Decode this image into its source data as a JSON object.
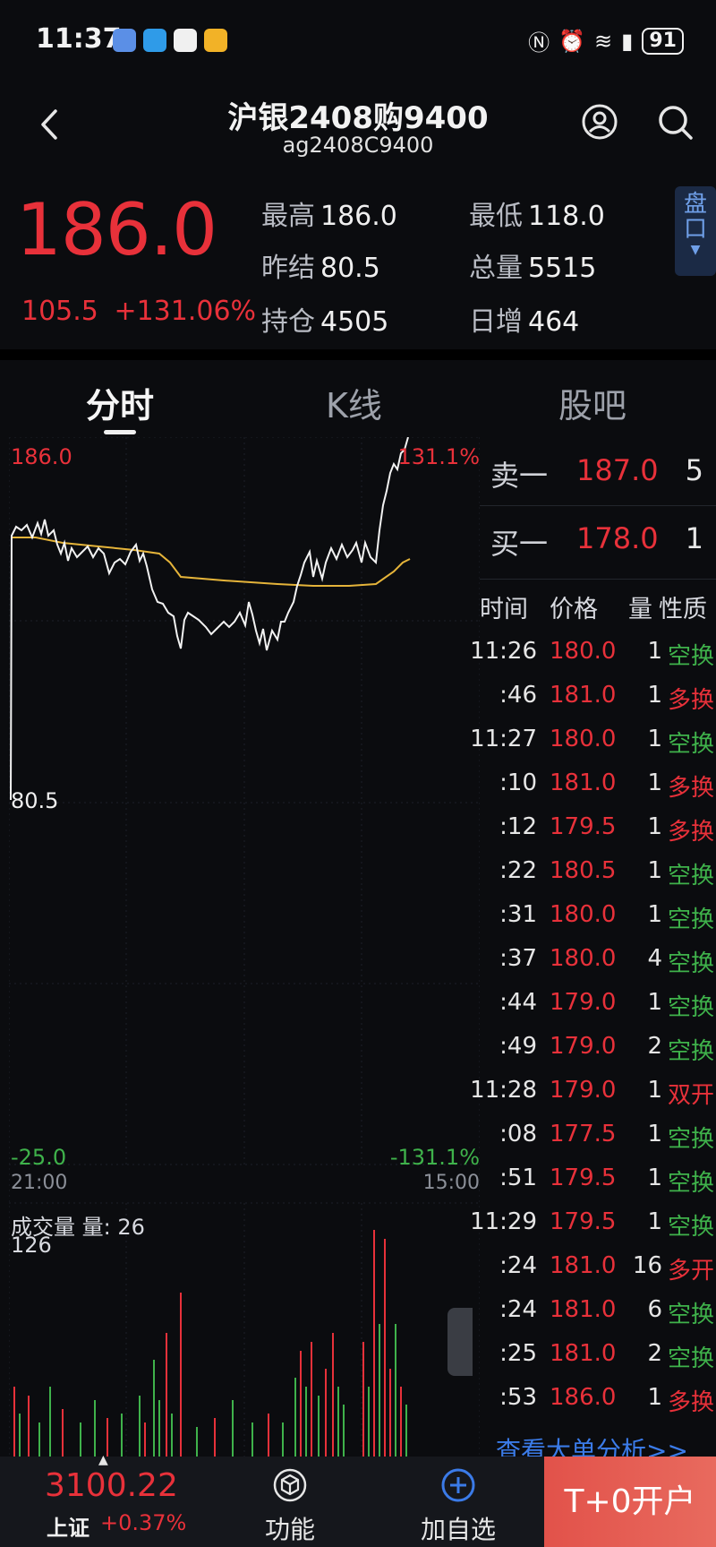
{
  "status_bar": {
    "time": "11:37",
    "battery": "91"
  },
  "header": {
    "title": "沪银2408购9400",
    "subtitle": "ag2408C9400"
  },
  "quote": {
    "price": "186.0",
    "change": "105.5",
    "change_pct": "+131.06%",
    "stats": [
      {
        "label": "最高",
        "value": "186.0"
      },
      {
        "label": "最低",
        "value": "118.0"
      },
      {
        "label": "昨结",
        "value": "80.5"
      },
      {
        "label": "总量",
        "value": "5515"
      },
      {
        "label": "持仓",
        "value": "4505"
      },
      {
        "label": "日增",
        "value": "464"
      }
    ],
    "pankou_label": "盘口"
  },
  "tabs": [
    "分时",
    "K线",
    "股吧"
  ],
  "chart": {
    "y_top_left": "186.0",
    "y_top_right": "131.1%",
    "y_mid_left": "80.5",
    "y_bottom_left": "-25.0",
    "y_bottom_right": "-131.1%",
    "x_start": "21:00",
    "x_end": "15:00",
    "volume_label": "成交量 量: 26",
    "volume_max": "126"
  },
  "orderbook": {
    "ask": {
      "label": "卖一",
      "price": "187.0",
      "volume": "5"
    },
    "bid": {
      "label": "买一",
      "price": "178.0",
      "volume": "1"
    }
  },
  "trades_header": {
    "time": "时间",
    "price": "价格",
    "qty": "量",
    "nature": "性质"
  },
  "trades": [
    {
      "time": "11:26",
      "price": "180.0",
      "qty": "1",
      "nature": "空换",
      "color": "#3fb24b"
    },
    {
      "time": ":46",
      "price": "181.0",
      "qty": "1",
      "nature": "多换",
      "color": "#e8313a"
    },
    {
      "time": "11:27",
      "price": "180.0",
      "qty": "1",
      "nature": "空换",
      "color": "#3fb24b"
    },
    {
      "time": ":10",
      "price": "181.0",
      "qty": "1",
      "nature": "多换",
      "color": "#e8313a"
    },
    {
      "time": ":12",
      "price": "179.5",
      "qty": "1",
      "nature": "多换",
      "color": "#e8313a"
    },
    {
      "time": ":22",
      "price": "180.5",
      "qty": "1",
      "nature": "空换",
      "color": "#3fb24b"
    },
    {
      "time": ":31",
      "price": "180.0",
      "qty": "1",
      "nature": "空换",
      "color": "#3fb24b"
    },
    {
      "time": ":37",
      "price": "180.0",
      "qty": "4",
      "nature": "空换",
      "color": "#3fb24b"
    },
    {
      "time": ":44",
      "price": "179.0",
      "qty": "1",
      "nature": "空换",
      "color": "#3fb24b"
    },
    {
      "time": ":49",
      "price": "179.0",
      "qty": "2",
      "nature": "空换",
      "color": "#3fb24b"
    },
    {
      "time": "11:28",
      "price": "179.0",
      "qty": "1",
      "nature": "双开",
      "color": "#e8313a"
    },
    {
      "time": ":08",
      "price": "177.5",
      "qty": "1",
      "nature": "空换",
      "color": "#3fb24b"
    },
    {
      "time": ":51",
      "price": "179.5",
      "qty": "1",
      "nature": "空换",
      "color": "#3fb24b"
    },
    {
      "time": "11:29",
      "price": "179.5",
      "qty": "1",
      "nature": "空换",
      "color": "#3fb24b"
    },
    {
      "time": ":24",
      "price": "181.0",
      "qty": "16",
      "nature": "多开",
      "color": "#e8313a"
    },
    {
      "time": ":24",
      "price": "181.0",
      "qty": "6",
      "nature": "空换",
      "color": "#3fb24b"
    },
    {
      "time": ":25",
      "price": "181.0",
      "qty": "2",
      "nature": "空换",
      "color": "#3fb24b"
    },
    {
      "time": ":53",
      "price": "186.0",
      "qty": "1",
      "nature": "多换",
      "color": "#e8313a"
    }
  ],
  "big_order_link": "查看大单分析>>",
  "bottom_bar": {
    "index_value": "3100.22",
    "index_name": "上证",
    "index_change": "+0.37%",
    "func_label": "功能",
    "watch_label": "加自选",
    "open_label": "T+0开户"
  }
}
